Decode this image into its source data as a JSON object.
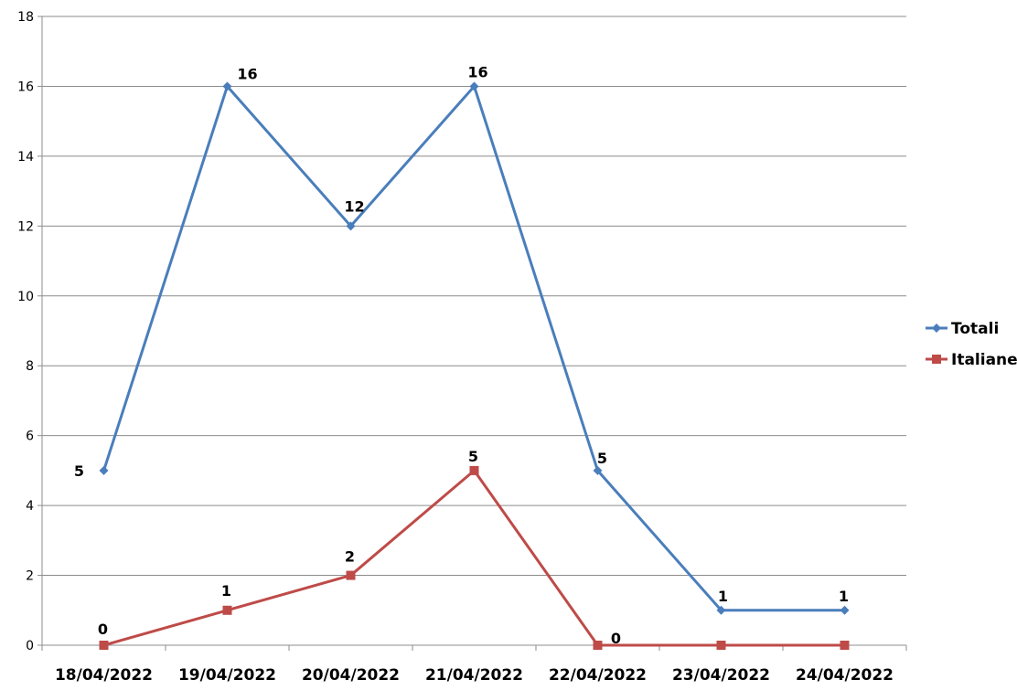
{
  "chart_data": {
    "type": "line",
    "title": "",
    "xlabel": "",
    "ylabel": "",
    "categories": [
      "18/04/2022",
      "19/04/2022",
      "20/04/2022",
      "21/04/2022",
      "22/04/2022",
      "23/04/2022",
      "24/04/2022"
    ],
    "ylim": [
      0,
      18
    ],
    "yticks": [
      0,
      2,
      4,
      6,
      8,
      10,
      12,
      14,
      16,
      18
    ],
    "grid": true,
    "legend_position": "right",
    "series": [
      {
        "name": "Totali",
        "color": "#4A7EBB",
        "marker": "diamond",
        "values": [
          5,
          16,
          12,
          16,
          5,
          1,
          1
        ],
        "labels": [
          "5",
          "16",
          "12",
          "16",
          "5",
          "1",
          "1"
        ]
      },
      {
        "name": "Italiane",
        "color": "#BE4B48",
        "marker": "square",
        "values": [
          0,
          1,
          2,
          5,
          0,
          0,
          0
        ],
        "labels": [
          "0",
          "1",
          "2",
          "5",
          "0",
          "",
          ""
        ]
      }
    ]
  }
}
